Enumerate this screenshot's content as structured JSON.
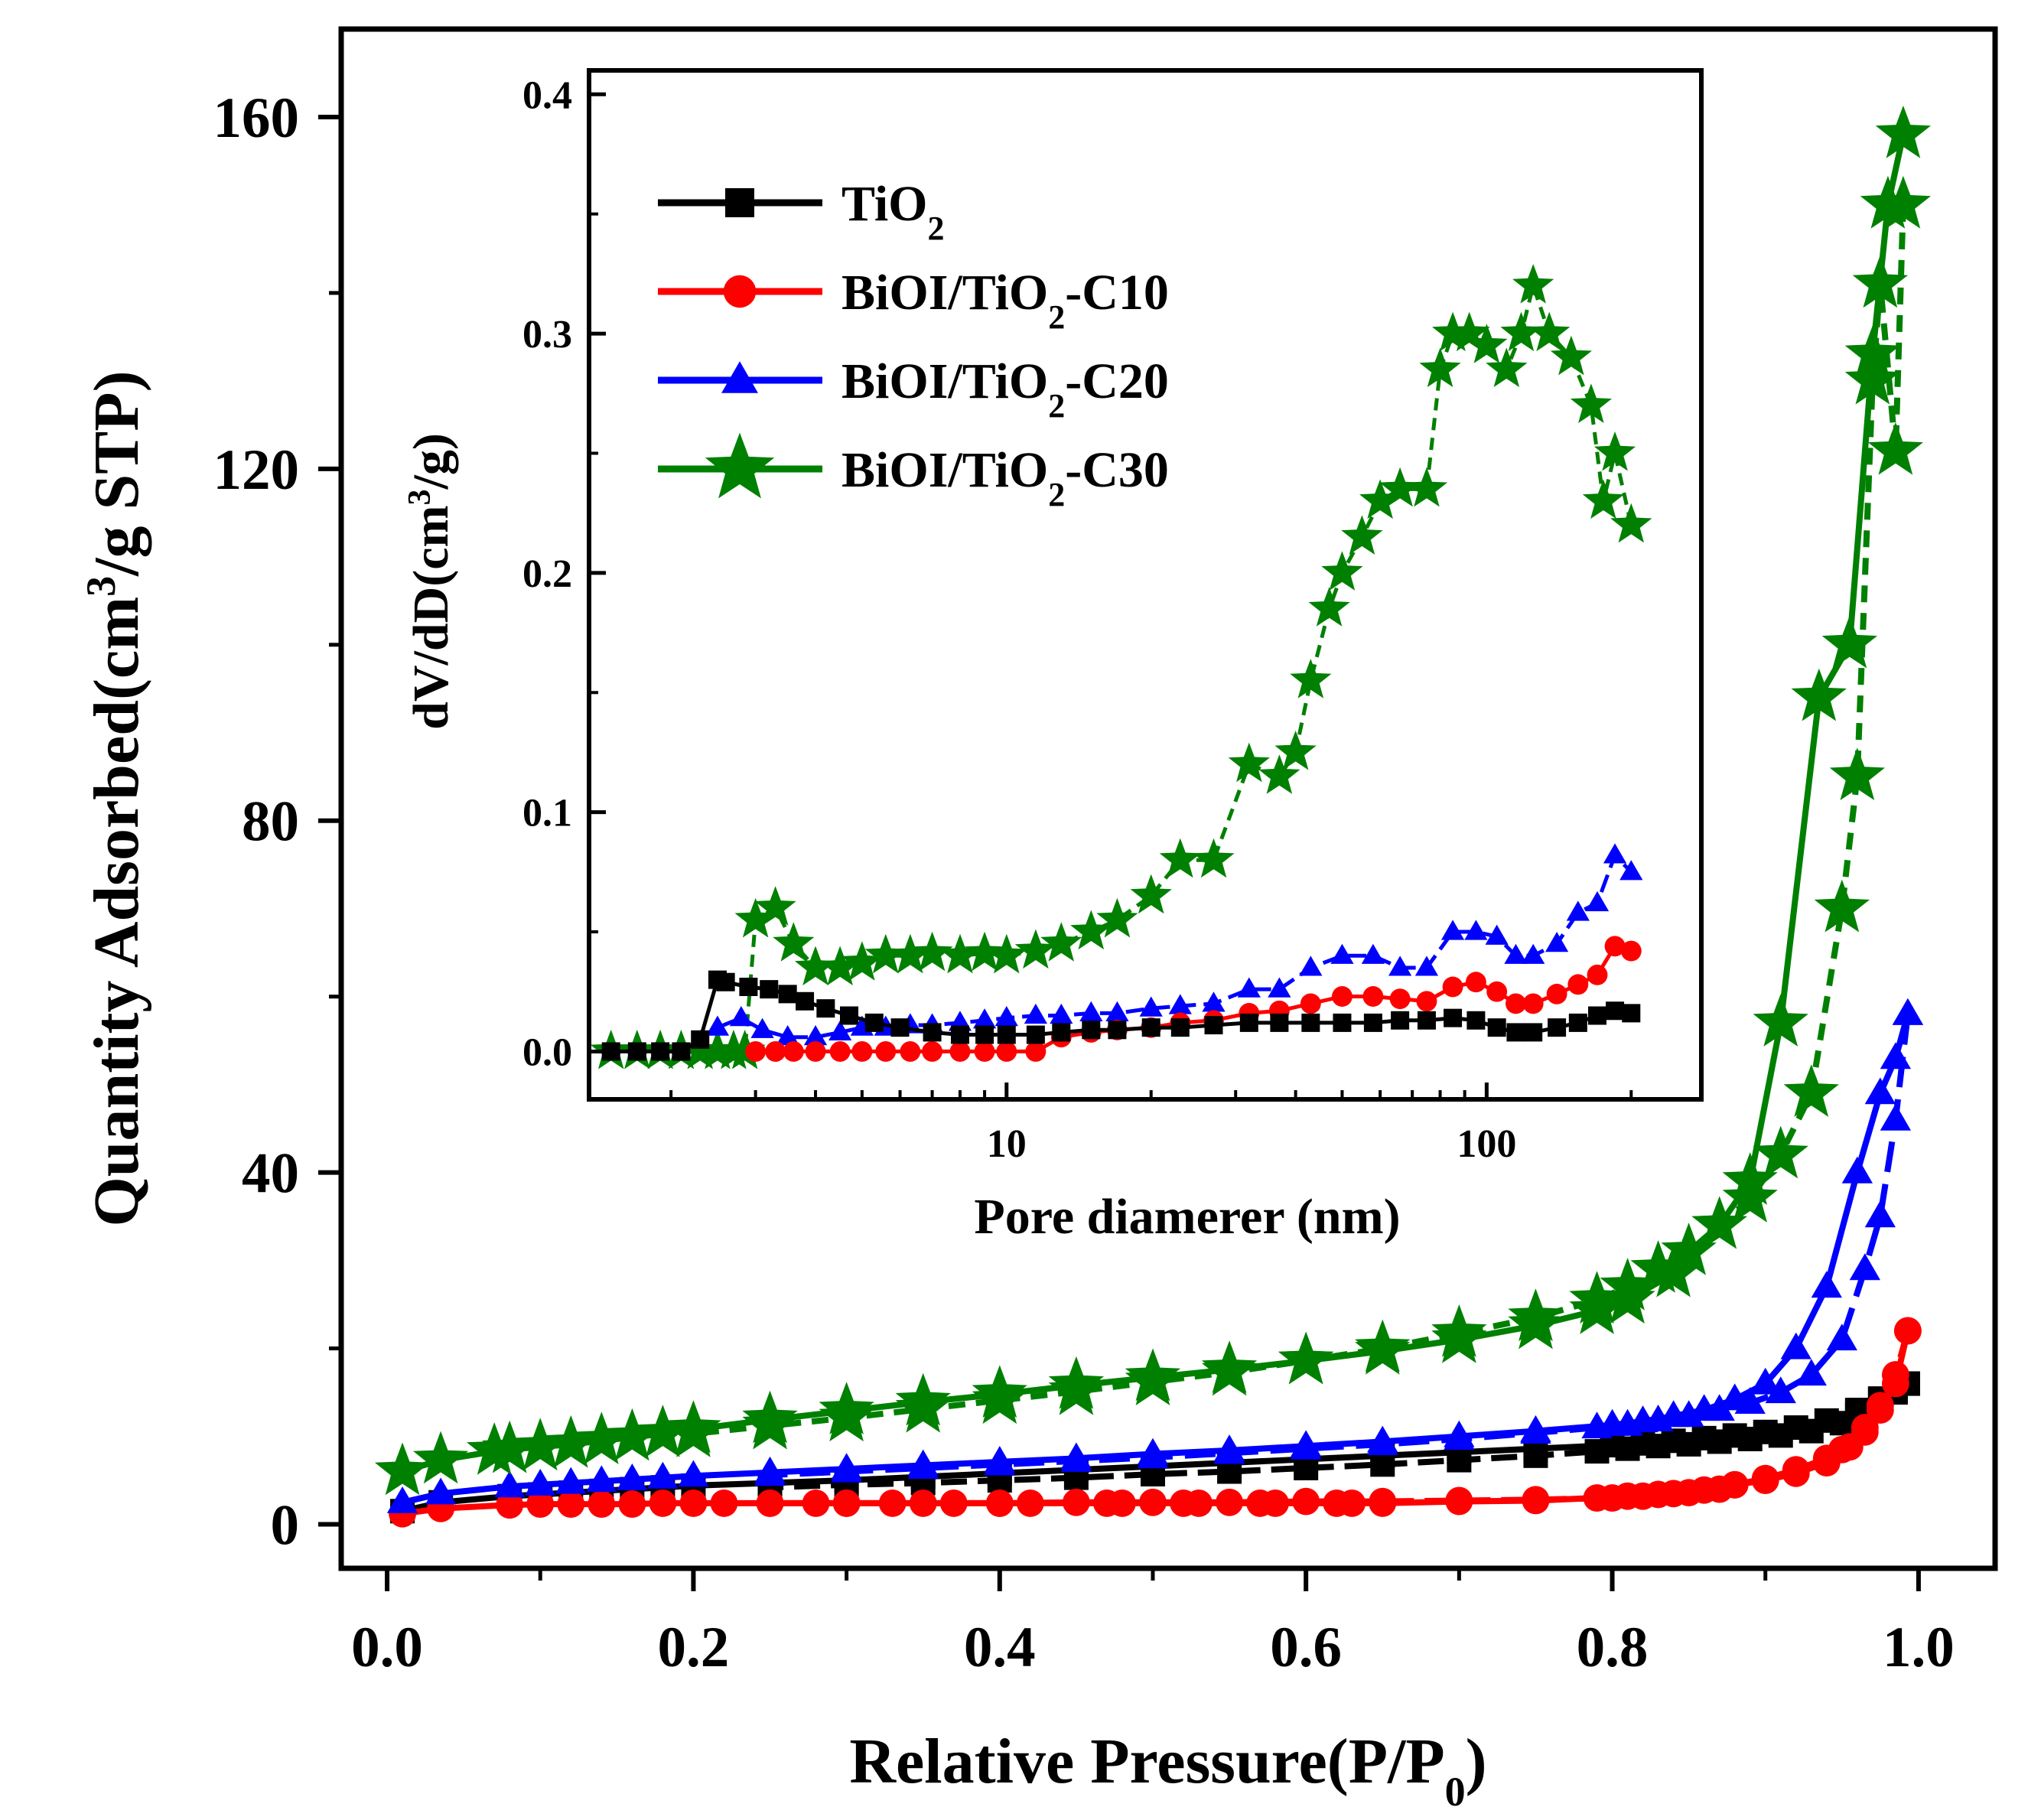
{
  "chart_data": [
    {
      "type": "line",
      "xlabel": "Relative Pressure(P/P0)",
      "ylabel": "Quantity Adsorbed(cm3/g STP)",
      "xlim": [
        -0.03,
        1.05
      ],
      "ylim": [
        -5,
        170
      ],
      "xticks": [
        0.0,
        0.2,
        0.4,
        0.6,
        0.8,
        1.0
      ],
      "xtick_labels": [
        "0.0",
        "0.2",
        "0.4",
        "0.6",
        "0.8",
        "1.0"
      ],
      "yticks": [
        0,
        40,
        80,
        120,
        160
      ],
      "ytick_labels": [
        "0",
        "40",
        "80",
        "120",
        "160"
      ],
      "grid": false,
      "series": [
        {
          "name": "TiO2",
          "color": "#000000",
          "marker": "square",
          "adsorption": {
            "x": [
              0.01,
              0.035,
              0.08,
              0.1,
              0.12,
              0.14,
              0.16,
              0.18,
              0.2,
              0.25,
              0.3,
              0.35,
              0.4,
              0.45,
              0.5,
              0.55,
              0.6,
              0.65,
              0.7,
              0.75,
              0.8,
              0.82,
              0.84,
              0.86,
              0.88,
              0.9,
              0.92,
              0.94,
              0.96,
              0.975,
              0.985,
              0.993
            ],
            "y": [
              1.5,
              2.5,
              3.2,
              3.4,
              3.6,
              3.8,
              4.0,
              4.2,
              4.4,
              4.7,
              5.0,
              5.4,
              5.8,
              6.2,
              6.6,
              7.0,
              7.4,
              7.8,
              8.2,
              8.6,
              9.0,
              9.2,
              9.5,
              9.8,
              10.1,
              10.5,
              11.0,
              11.8,
              13.0,
              14.2,
              15.0,
              16.0
            ]
          },
          "desorption": {
            "x": [
              0.993,
              0.985,
              0.975,
              0.96,
              0.95,
              0.93,
              0.91,
              0.89,
              0.87,
              0.85,
              0.83,
              0.81,
              0.79,
              0.75,
              0.7,
              0.65,
              0.6,
              0.55,
              0.5,
              0.45,
              0.4,
              0.35,
              0.3,
              0.25
            ],
            "y": [
              16.0,
              15.2,
              14.3,
              12.5,
              11.5,
              10.6,
              10.1,
              9.7,
              9.4,
              9.1,
              8.9,
              8.6,
              8.3,
              7.8,
              7.3,
              6.8,
              6.4,
              6.0,
              5.7,
              5.3,
              5.0,
              4.7,
              4.5,
              4.2
            ]
          }
        },
        {
          "name": "BiOI/TiO2-C10",
          "color": "#ff0000",
          "marker": "circle",
          "adsorption": {
            "x": [
              0.01,
              0.035,
              0.08,
              0.1,
              0.12,
              0.14,
              0.16,
              0.18,
              0.2,
              0.22,
              0.25,
              0.28,
              0.3,
              0.33,
              0.37,
              0.4,
              0.42,
              0.47,
              0.48,
              0.52,
              0.53,
              0.57,
              0.58,
              0.62,
              0.63,
              0.65,
              0.7,
              0.75,
              0.79,
              0.81,
              0.83,
              0.85,
              0.87,
              0.88,
              0.9,
              0.92,
              0.94,
              0.955,
              0.965,
              0.975,
              0.985,
              0.993
            ],
            "y": [
              1.2,
              1.8,
              2.2,
              2.3,
              2.3,
              2.3,
              2.3,
              2.4,
              2.4,
              2.4,
              2.4,
              2.4,
              2.4,
              2.4,
              2.4,
              2.4,
              2.4,
              2.4,
              2.4,
              2.4,
              2.4,
              2.4,
              2.4,
              2.4,
              2.4,
              2.4,
              2.6,
              2.7,
              3.0,
              3.2,
              3.4,
              3.6,
              4.0,
              4.5,
              5.0,
              5.8,
              7.0,
              8.8,
              10.5,
              13.0,
              16.0,
              22.0
            ]
          },
          "desorption": {
            "x": [
              0.993,
              0.985,
              0.975,
              0.965,
              0.95,
              0.94,
              0.92,
              0.9,
              0.88,
              0.86,
              0.84,
              0.82,
              0.8,
              0.75,
              0.7,
              0.65,
              0.6,
              0.55,
              0.5,
              0.45,
              0.4,
              0.35,
              0.3,
              0.25
            ],
            "y": [
              22.0,
              17.0,
              13.5,
              11.0,
              8.5,
              7.5,
              6.2,
              5.2,
              4.5,
              3.9,
              3.5,
              3.2,
              3.0,
              2.8,
              2.7,
              2.6,
              2.6,
              2.5,
              2.5,
              2.5,
              2.4,
              2.4,
              2.4,
              2.4
            ]
          }
        },
        {
          "name": "BiOI/TiO2-C20",
          "color": "#0000ff",
          "marker": "triangle",
          "adsorption": {
            "x": [
              0.01,
              0.035,
              0.08,
              0.1,
              0.12,
              0.14,
              0.16,
              0.18,
              0.2,
              0.25,
              0.3,
              0.35,
              0.4,
              0.45,
              0.5,
              0.55,
              0.6,
              0.65,
              0.7,
              0.75,
              0.8,
              0.82,
              0.84,
              0.86,
              0.88,
              0.9,
              0.92,
              0.94,
              0.96,
              0.975,
              0.985,
              0.993
            ],
            "y": [
              2.5,
              3.5,
              4.3,
              4.5,
              4.7,
              4.9,
              5.1,
              5.3,
              5.5,
              5.9,
              6.3,
              6.7,
              7.1,
              7.5,
              8.0,
              8.4,
              8.9,
              9.4,
              10.0,
              10.6,
              11.3,
              11.7,
              12.3,
              13.0,
              14.2,
              16.0,
              20.0,
              27.0,
              40.0,
              49.0,
              53.0,
              58.0
            ]
          },
          "desorption": {
            "x": [
              0.993,
              0.985,
              0.975,
              0.965,
              0.95,
              0.93,
              0.91,
              0.89,
              0.87,
              0.85,
              0.83,
              0.81,
              0.79,
              0.75,
              0.7,
              0.65,
              0.6,
              0.55,
              0.5,
              0.45,
              0.4,
              0.35,
              0.3,
              0.25
            ],
            "y": [
              58.0,
              46.0,
              35.0,
              29.0,
              21.0,
              17.0,
              15.0,
              13.8,
              13.0,
              12.3,
              11.8,
              11.3,
              11.0,
              10.4,
              9.7,
              9.1,
              8.6,
              8.1,
              7.6,
              7.2,
              6.8,
              6.4,
              6.0,
              5.6
            ]
          }
        },
        {
          "name": "BiOI/TiO2-C30",
          "color": "#008000",
          "marker": "star",
          "adsorption": {
            "x": [
              0.01,
              0.035,
              0.07,
              0.08,
              0.1,
              0.12,
              0.14,
              0.16,
              0.18,
              0.2,
              0.25,
              0.3,
              0.35,
              0.4,
              0.45,
              0.5,
              0.55,
              0.6,
              0.65,
              0.7,
              0.75,
              0.79,
              0.81,
              0.84,
              0.87,
              0.89,
              0.91,
              0.935,
              0.955,
              0.97,
              0.98,
              0.99
            ],
            "y": [
              6.0,
              7.3,
              8.3,
              8.5,
              8.8,
              9.1,
              9.5,
              9.9,
              10.3,
              10.8,
              11.9,
              12.9,
              13.9,
              14.8,
              15.8,
              16.7,
              17.6,
              18.6,
              19.7,
              21.0,
              22.6,
              24.3,
              25.5,
              28.5,
              34.0,
              39.0,
              57.0,
              94.0,
              100.0,
              133.0,
              150.0,
              158.0
            ]
          },
          "desorption": {
            "x": [
              0.99,
              0.985,
              0.975,
              0.97,
              0.96,
              0.95,
              0.93,
              0.91,
              0.89,
              0.87,
              0.85,
              0.83,
              0.81,
              0.79,
              0.75,
              0.7,
              0.65,
              0.6,
              0.55,
              0.5,
              0.45,
              0.4,
              0.35,
              0.3,
              0.25,
              0.2
            ],
            "y": [
              150.0,
              122.0,
              141.0,
              130.0,
              85.0,
              70.0,
              49.0,
              42.0,
              37.0,
              34.0,
              31.0,
              29.0,
              27.0,
              25.5,
              23.5,
              21.7,
              20.0,
              18.6,
              17.3,
              16.2,
              15.1,
              14.1,
              13.1,
              12.1,
              11.2,
              10.3
            ]
          }
        }
      ]
    },
    {
      "type": "line",
      "inset": true,
      "xlabel": "Pore diamerer (nm)",
      "ylabel": "dV/dD(cm3/g)",
      "xscale": "log",
      "xlim": [
        1.35,
        280
      ],
      "ylim": [
        -0.02,
        0.41
      ],
      "xticks": [
        10,
        100
      ],
      "xtick_labels": [
        "10",
        "100"
      ],
      "yticks": [
        0.0,
        0.1,
        0.2,
        0.3,
        0.4
      ],
      "ytick_labels": [
        "0.0",
        "0.1",
        "0.2",
        "0.3",
        "0.4"
      ],
      "grid": false,
      "legend_position": "top-left",
      "series": [
        {
          "name": "TiO2",
          "color": "#000000",
          "marker": "square",
          "x": [
            1.5,
            1.7,
            1.9,
            2.1,
            2.3,
            2.5,
            2.6,
            2.9,
            3.2,
            3.5,
            3.8,
            4.2,
            4.7,
            5.3,
            6.0,
            7.0,
            8.0,
            9.0,
            10.0,
            11.5,
            13,
            15,
            17,
            20,
            23,
            27,
            32,
            37,
            43,
            50,
            58,
            66,
            75,
            85,
            95,
            105,
            115,
            125,
            140,
            155,
            170,
            185,
            200
          ],
          "y": [
            0.0,
            0.0,
            0.0,
            0.0,
            0.005,
            0.03,
            0.029,
            0.027,
            0.026,
            0.024,
            0.021,
            0.018,
            0.015,
            0.012,
            0.01,
            0.008,
            0.007,
            0.007,
            0.007,
            0.007,
            0.008,
            0.009,
            0.009,
            0.01,
            0.01,
            0.011,
            0.012,
            0.012,
            0.012,
            0.012,
            0.012,
            0.013,
            0.013,
            0.014,
            0.013,
            0.01,
            0.008,
            0.008,
            0.01,
            0.012,
            0.015,
            0.017,
            0.016
          ]
        },
        {
          "name": "BiOI/TiO2-C10",
          "color": "#ff0000",
          "marker": "circle",
          "x": [
            3.0,
            3.3,
            3.6,
            4.0,
            4.5,
            5.0,
            5.6,
            6.3,
            7.0,
            8.0,
            9.0,
            10.0,
            11.5,
            13,
            15,
            17,
            20,
            23,
            27,
            32,
            37,
            43,
            50,
            58,
            66,
            75,
            85,
            95,
            105,
            115,
            125,
            140,
            155,
            170,
            185,
            200
          ],
          "y": [
            0.0,
            0.0,
            0.0,
            0.0,
            0.0,
            0.0,
            0.0,
            0.0,
            0.0,
            0.0,
            0.0,
            0.0,
            0.0,
            0.006,
            0.008,
            0.009,
            0.01,
            0.012,
            0.013,
            0.016,
            0.017,
            0.02,
            0.023,
            0.023,
            0.022,
            0.021,
            0.027,
            0.029,
            0.025,
            0.02,
            0.02,
            0.024,
            0.028,
            0.032,
            0.044,
            0.042
          ]
        },
        {
          "name": "BiOI/TiO2-C20",
          "color": "#0000ff",
          "marker": "triangle",
          "x": [
            2.5,
            2.8,
            3.1,
            3.5,
            4.0,
            4.5,
            5.0,
            5.6,
            6.3,
            7.0,
            8.0,
            9.0,
            10.0,
            11.5,
            13,
            15,
            17,
            20,
            23,
            27,
            32,
            37,
            43,
            50,
            58,
            66,
            75,
            85,
            95,
            105,
            115,
            125,
            140,
            155,
            170,
            185,
            200
          ],
          "y": [
            0.01,
            0.014,
            0.009,
            0.006,
            0.006,
            0.008,
            0.01,
            0.01,
            0.011,
            0.011,
            0.012,
            0.013,
            0.014,
            0.015,
            0.015,
            0.016,
            0.016,
            0.018,
            0.019,
            0.02,
            0.026,
            0.026,
            0.035,
            0.04,
            0.04,
            0.035,
            0.035,
            0.05,
            0.05,
            0.048,
            0.04,
            0.04,
            0.045,
            0.058,
            0.062,
            0.082,
            0.075
          ]
        },
        {
          "name": "BiOI/TiO2-C30",
          "color": "#008000",
          "marker": "star",
          "x": [
            1.5,
            1.7,
            1.9,
            2.1,
            2.3,
            2.5,
            2.7,
            2.85,
            3.0,
            3.3,
            3.6,
            4.0,
            4.5,
            5.0,
            5.6,
            6.3,
            7.0,
            8.0,
            9.0,
            10.0,
            11.5,
            13,
            15,
            17,
            20,
            23,
            27,
            32,
            37,
            40,
            43,
            47,
            50,
            55,
            60,
            66,
            75,
            80,
            85,
            92,
            100,
            110,
            118,
            125,
            135,
            150,
            165,
            175,
            185,
            200
          ],
          "y": [
            0.0,
            0.0,
            0.0,
            0.0,
            0.0,
            0.0,
            0.0,
            0.0,
            0.055,
            0.06,
            0.045,
            0.035,
            0.035,
            0.037,
            0.04,
            0.04,
            0.041,
            0.04,
            0.041,
            0.04,
            0.042,
            0.045,
            0.05,
            0.055,
            0.065,
            0.08,
            0.08,
            0.12,
            0.115,
            0.125,
            0.155,
            0.185,
            0.2,
            0.215,
            0.23,
            0.235,
            0.235,
            0.285,
            0.3,
            0.3,
            0.295,
            0.285,
            0.3,
            0.32,
            0.3,
            0.29,
            0.27,
            0.23,
            0.25,
            0.22
          ]
        }
      ]
    }
  ]
}
